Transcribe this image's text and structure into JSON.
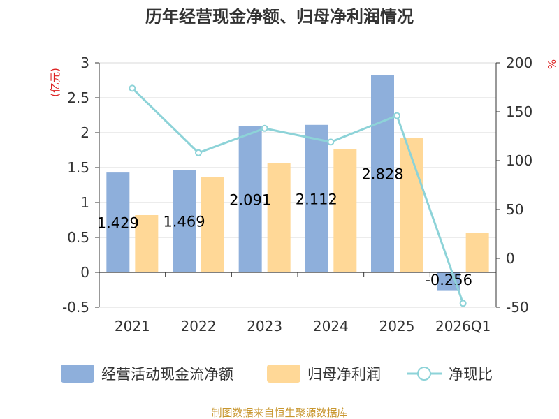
{
  "chart_data": {
    "type": "bar",
    "title": "历年经营现金净额、归母净利润情况",
    "categories": [
      "2021",
      "2022",
      "2023",
      "2024",
      "2025",
      "2026Q1"
    ],
    "left_axis": {
      "unit": "(亿元)",
      "ylim": [
        -0.5,
        3
      ],
      "ticks": [
        "-0.5",
        "0",
        "0.5",
        "1",
        "1.5",
        "2",
        "2.5",
        "3"
      ]
    },
    "right_axis": {
      "unit": "%",
      "ylim": [
        -50,
        200
      ],
      "ticks": [
        "-50",
        "0",
        "50",
        "100",
        "150",
        "200"
      ]
    },
    "grid": true,
    "legend_position": "bottom",
    "series": [
      {
        "name": "经营活动现金流净额",
        "type": "bar",
        "axis": "left",
        "color": "#8eafdb",
        "values": [
          1.429,
          1.469,
          2.091,
          2.112,
          2.828,
          -0.256
        ],
        "data_labels": [
          "1.429",
          "1.469",
          "2.091",
          "2.112",
          "2.828",
          "-0.256"
        ]
      },
      {
        "name": "归母净利润",
        "type": "bar",
        "axis": "left",
        "color": "#ffd897",
        "values": [
          0.82,
          1.36,
          1.57,
          1.77,
          1.93,
          0.56
        ]
      },
      {
        "name": "净现比",
        "type": "line",
        "axis": "right",
        "color": "#8dd3d8",
        "values": [
          174,
          108,
          133,
          119,
          146,
          -46
        ]
      }
    ]
  },
  "source": "制图数据来自恒生聚源数据库",
  "colors": {
    "left_unit": "#dd2222",
    "right_unit": "#dd2222",
    "source": "#c8962e"
  }
}
